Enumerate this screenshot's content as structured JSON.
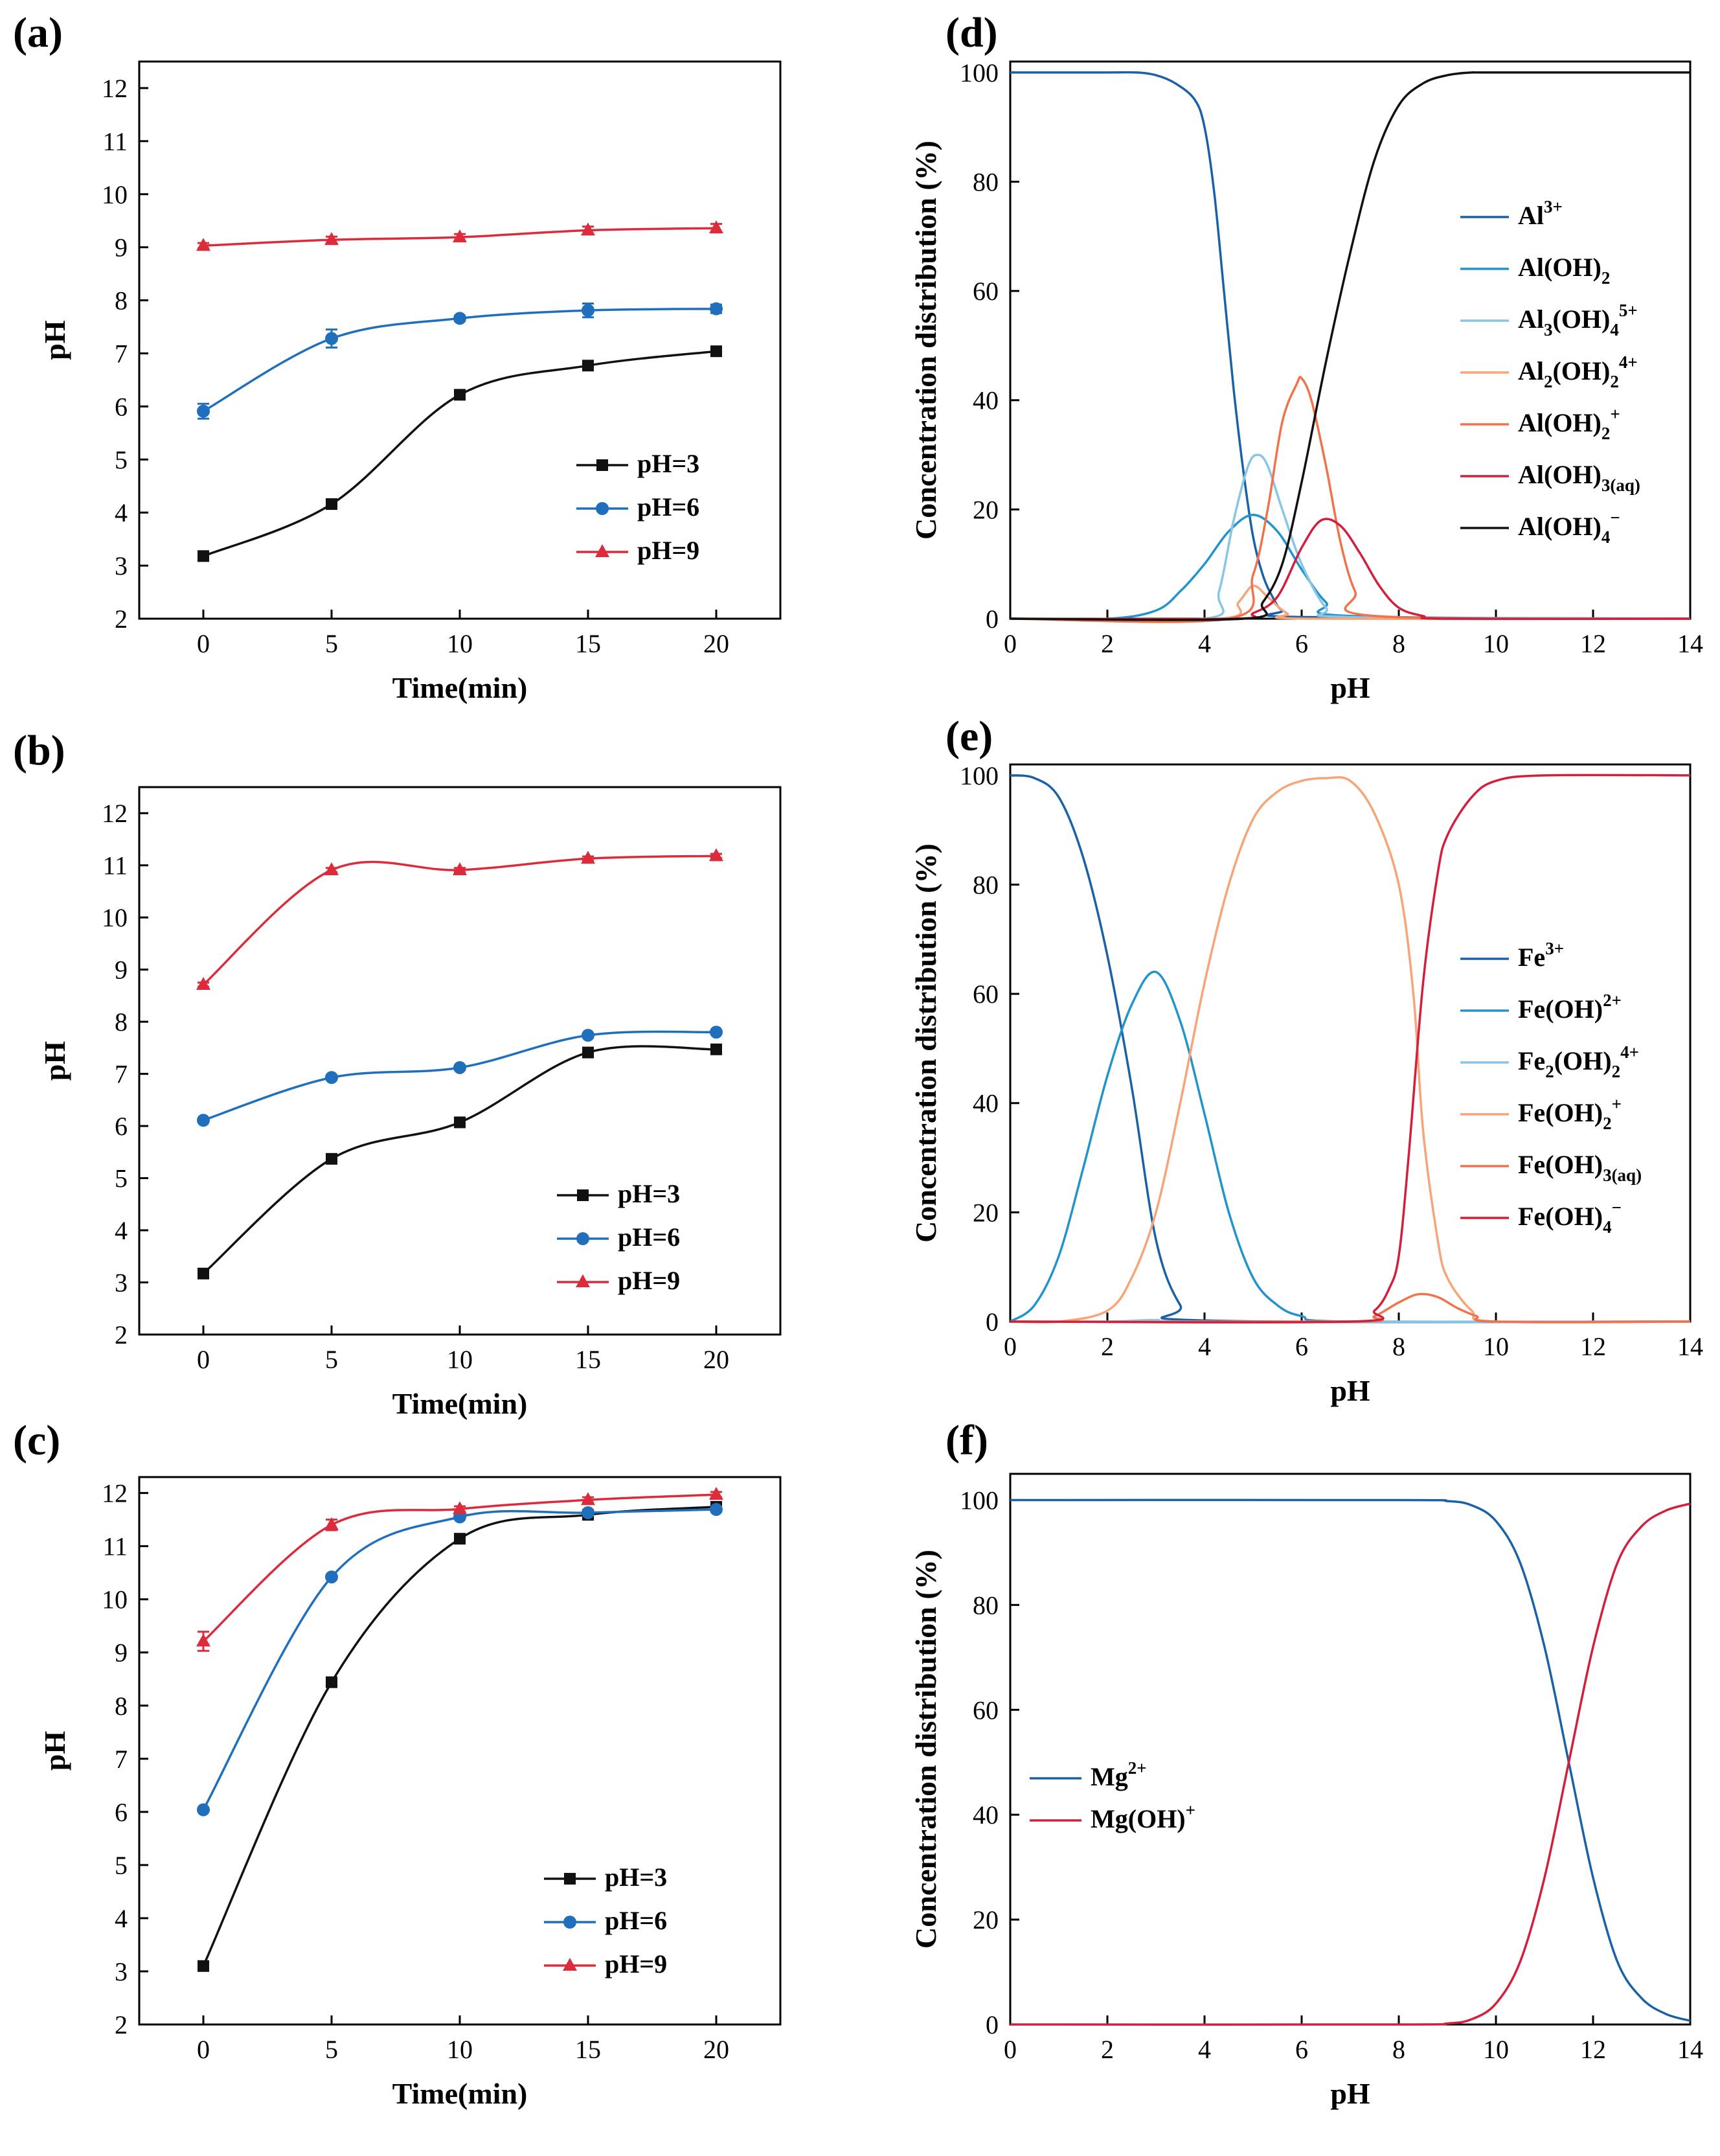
{
  "figure": {
    "panels": [
      "(a)",
      "(b)",
      "(c)",
      "(d)",
      "(e)",
      "(f)"
    ]
  },
  "chart_data": [
    {
      "id": "a",
      "panel_label": "(a)",
      "type": "line",
      "xlabel": "Time(min)",
      "ylabel": "pH",
      "xlim": [
        -2.5,
        22.5
      ],
      "ylim": [
        2,
        12.5
      ],
      "xticks": [
        0,
        5,
        10,
        15,
        20
      ],
      "yticks": [
        2,
        3,
        4,
        5,
        6,
        7,
        8,
        9,
        10,
        11,
        12
      ],
      "legend_position": "lower-right",
      "series": [
        {
          "name": "pH=3",
          "color": "#111111",
          "marker": "square",
          "x": [
            0,
            5,
            10,
            15,
            20
          ],
          "y": [
            3.18,
            4.16,
            6.22,
            6.77,
            7.04
          ],
          "err": [
            0.05,
            0.05,
            0.05,
            0.05,
            0.05
          ]
        },
        {
          "name": "pH=6",
          "color": "#1f6fbd",
          "marker": "circle",
          "x": [
            0,
            5,
            10,
            15,
            20
          ],
          "y": [
            5.91,
            7.28,
            7.66,
            7.81,
            7.84
          ],
          "err": [
            0.14,
            0.17,
            0.05,
            0.13,
            0.08
          ]
        },
        {
          "name": "pH=9",
          "color": "#dc2c3c",
          "marker": "triangle",
          "x": [
            0,
            5,
            10,
            15,
            20
          ],
          "y": [
            9.03,
            9.14,
            9.19,
            9.32,
            9.36
          ],
          "err": [
            0.05,
            0.06,
            0.06,
            0.07,
            0.08
          ]
        }
      ]
    },
    {
      "id": "b",
      "panel_label": "(b)",
      "type": "line",
      "xlabel": "Time(min)",
      "ylabel": "pH",
      "xlim": [
        -2.5,
        22.5
      ],
      "ylim": [
        2,
        12.5
      ],
      "xticks": [
        0,
        5,
        10,
        15,
        20
      ],
      "yticks": [
        2,
        3,
        4,
        5,
        6,
        7,
        8,
        9,
        10,
        11,
        12
      ],
      "legend_position": "lower-right",
      "series": [
        {
          "name": "pH=3",
          "color": "#111111",
          "marker": "square",
          "x": [
            0,
            5,
            10,
            15,
            20
          ],
          "y": [
            3.17,
            5.37,
            6.07,
            7.41,
            7.47
          ],
          "err": [
            0.04,
            0.04,
            0.04,
            0.04,
            0.04
          ]
        },
        {
          "name": "pH=6",
          "color": "#1f6fbd",
          "marker": "circle",
          "x": [
            0,
            5,
            10,
            15,
            20
          ],
          "y": [
            6.11,
            6.93,
            7.12,
            7.74,
            7.8
          ],
          "err": [
            0.04,
            0.04,
            0.04,
            0.04,
            0.04
          ]
        },
        {
          "name": "pH=9",
          "color": "#dc2c3c",
          "marker": "triangle",
          "x": [
            0,
            5,
            10,
            15,
            20
          ],
          "y": [
            8.71,
            10.91,
            10.91,
            11.13,
            11.18
          ],
          "err": [
            0.04,
            0.04,
            0.04,
            0.04,
            0.04
          ]
        }
      ]
    },
    {
      "id": "c",
      "panel_label": "(c)",
      "type": "line",
      "xlabel": "Time(min)",
      "ylabel": "pH",
      "xlim": [
        -2.5,
        22.5
      ],
      "ylim": [
        2,
        12.3
      ],
      "xticks": [
        0,
        5,
        10,
        15,
        20
      ],
      "yticks": [
        2,
        3,
        4,
        5,
        6,
        7,
        8,
        9,
        10,
        11,
        12
      ],
      "legend_position": "lower-right",
      "series": [
        {
          "name": "pH=3",
          "color": "#111111",
          "marker": "square",
          "x": [
            0,
            5,
            10,
            15,
            20
          ],
          "y": [
            3.1,
            8.44,
            11.14,
            11.59,
            11.74
          ],
          "err": [
            0.04,
            0.04,
            0.04,
            0.04,
            0.04
          ]
        },
        {
          "name": "pH=6",
          "color": "#1f6fbd",
          "marker": "circle",
          "x": [
            0,
            5,
            10,
            15,
            20
          ],
          "y": [
            6.04,
            10.42,
            11.55,
            11.63,
            11.69
          ],
          "err": [
            0.04,
            0.04,
            0.04,
            0.04,
            0.04
          ]
        },
        {
          "name": "pH=9",
          "color": "#dc2c3c",
          "marker": "triangle",
          "x": [
            0,
            5,
            10,
            15,
            20
          ],
          "y": [
            9.21,
            11.4,
            11.7,
            11.87,
            11.97
          ],
          "err": [
            0.18,
            0.1,
            0.05,
            0.05,
            0.05
          ]
        }
      ]
    },
    {
      "id": "d",
      "panel_label": "(d)",
      "type": "line",
      "xlabel": "pH",
      "ylabel": "Concentration distribution (%)",
      "xlim": [
        0,
        14
      ],
      "ylim": [
        0,
        102
      ],
      "xticks": [
        0,
        2,
        4,
        6,
        8,
        10,
        12,
        14
      ],
      "yticks": [
        0,
        20,
        40,
        60,
        80,
        100
      ],
      "legend_position": "right",
      "series": [
        {
          "name": "Al3+",
          "label_parts": [
            [
              "Al",
              ""
            ],
            [
              "3+",
              "sup"
            ]
          ],
          "color": "#1a62a8",
          "x": [
            0,
            2,
            2.6,
            3,
            3.4,
            3.8,
            4,
            4.2,
            4.4,
            4.6,
            4.8,
            5,
            5.2,
            5.4,
            5.6,
            6,
            14
          ],
          "y": [
            100,
            100,
            100,
            99.5,
            98,
            95,
            90,
            78,
            60,
            42,
            27,
            15,
            8,
            4,
            1.5,
            0.3,
            0
          ]
        },
        {
          "name": "Al(OH)2",
          "label_parts": [
            [
              "Al(OH)",
              ""
            ],
            [
              "2",
              "sub"
            ]
          ],
          "color": "#2294cc",
          "x": [
            0,
            2,
            3,
            3.5,
            4,
            4.5,
            5,
            5.5,
            6,
            6.5,
            7,
            14
          ],
          "y": [
            0,
            0,
            1.5,
            5,
            10,
            16,
            19,
            16,
            9,
            3,
            0.5,
            0
          ]
        },
        {
          "name": "Al3(OH)45+",
          "label_parts": [
            [
              "Al",
              ""
            ],
            [
              "3",
              "sub"
            ],
            [
              "(OH)",
              ""
            ],
            [
              "4",
              "sub"
            ],
            [
              "5+",
              "sup"
            ]
          ],
          "color": "#87c6e6",
          "x": [
            0,
            4,
            4.3,
            4.6,
            4.9,
            5.1,
            5.3,
            5.6,
            6,
            6.5,
            7,
            14
          ],
          "y": [
            0,
            0,
            5,
            18,
            28,
            30,
            28,
            20,
            10,
            2,
            0.3,
            0
          ]
        },
        {
          "name": "Al2(OH)24+",
          "label_parts": [
            [
              "Al",
              ""
            ],
            [
              "2",
              "sub"
            ],
            [
              "(OH)",
              ""
            ],
            [
              "2",
              "sub"
            ],
            [
              "4+",
              "sup"
            ]
          ],
          "color": "#f7a478",
          "x": [
            0,
            4.3,
            4.7,
            5,
            5.3,
            5.7,
            6.2,
            14
          ],
          "y": [
            0,
            0,
            3,
            6,
            4,
            1,
            0,
            0
          ]
        },
        {
          "name": "Al(OH)2+",
          "label_parts": [
            [
              "Al(OH)",
              ""
            ],
            [
              "2",
              "sub"
            ],
            [
              "+",
              "sup"
            ]
          ],
          "color": "#f2724c",
          "x": [
            0,
            4.5,
            5,
            5.3,
            5.6,
            5.9,
            6,
            6.2,
            6.5,
            6.8,
            7.1,
            7.5,
            14
          ],
          "y": [
            0,
            0,
            8,
            20,
            36,
            43,
            44,
            40,
            28,
            14,
            5,
            0.5,
            0
          ]
        },
        {
          "name": "Al(OH)3(aq)",
          "label_parts": [
            [
              "Al(OH)",
              ""
            ],
            [
              "3(aq)",
              "sub"
            ]
          ],
          "color": "#d21f3c",
          "x": [
            0,
            4.6,
            5,
            5.5,
            6,
            6.4,
            6.8,
            7.2,
            7.6,
            8,
            8.5,
            9,
            14
          ],
          "y": [
            0,
            0,
            1,
            4,
            13,
            18,
            17,
            12,
            6,
            2,
            0.5,
            0,
            0
          ]
        },
        {
          "name": "Al(OH)4-",
          "label_parts": [
            [
              "Al(OH)",
              ""
            ],
            [
              "4",
              "sub"
            ],
            [
              "−",
              "sup"
            ]
          ],
          "color": "#111111",
          "x": [
            0,
            4.8,
            5.2,
            5.6,
            6,
            6.5,
            7,
            7.5,
            8,
            8.5,
            9,
            9.5,
            10,
            14
          ],
          "y": [
            0,
            0,
            3,
            10,
            25,
            47,
            67,
            84,
            94,
            98,
            99.5,
            100,
            100,
            100
          ]
        }
      ]
    },
    {
      "id": "e",
      "panel_label": "(e)",
      "type": "line",
      "xlabel": "pH",
      "ylabel": "Concentration distribution (%)",
      "xlim": [
        0,
        14
      ],
      "ylim": [
        0,
        102
      ],
      "xticks": [
        0,
        2,
        4,
        6,
        8,
        10,
        12,
        14
      ],
      "yticks": [
        0,
        20,
        40,
        60,
        80,
        100
      ],
      "legend_position": "right",
      "series": [
        {
          "name": "Fe3+",
          "label_parts": [
            [
              "Fe",
              ""
            ],
            [
              "3+",
              "sup"
            ]
          ],
          "color": "#1a62a8",
          "x": [
            0,
            0.5,
            1,
            1.5,
            2,
            2.5,
            3,
            3.5,
            4,
            14
          ],
          "y": [
            100,
            99.5,
            96,
            85,
            67,
            43,
            15,
            3,
            0.2,
            0
          ]
        },
        {
          "name": "Fe(OH)2+",
          "label_parts": [
            [
              "Fe(OH)",
              ""
            ],
            [
              "2+",
              "sup"
            ]
          ],
          "color": "#2294cc",
          "x": [
            0,
            0.5,
            1,
            1.5,
            2,
            2.5,
            3,
            3.5,
            4,
            4.5,
            5,
            5.5,
            6,
            7,
            14
          ],
          "y": [
            0,
            3,
            12,
            28,
            45,
            58,
            64,
            55,
            38,
            20,
            8,
            3,
            1,
            0,
            0
          ]
        },
        {
          "name": "Fe2(OH)24+",
          "label_parts": [
            [
              "Fe",
              ""
            ],
            [
              "2",
              "sub"
            ],
            [
              "(OH)",
              ""
            ],
            [
              "2",
              "sub"
            ],
            [
              "4+",
              "sup"
            ]
          ],
          "color": "#87c6e6",
          "x": [
            0,
            2,
            3,
            4,
            14
          ],
          "y": [
            0,
            0,
            0.3,
            0,
            0
          ]
        },
        {
          "name": "Fe(OH)2+",
          "label_parts": [
            [
              "Fe(OH)",
              ""
            ],
            [
              "2",
              "sub"
            ],
            [
              "+",
              "sup"
            ]
          ],
          "color": "#f7a478",
          "x": [
            0,
            1,
            2,
            2.5,
            3,
            3.5,
            4,
            4.5,
            5,
            5.5,
            6,
            6.5,
            7,
            7.5,
            8,
            8.3,
            8.5,
            8.8,
            9,
            9.5,
            10,
            14
          ],
          "y": [
            0,
            0,
            2,
            8,
            20,
            40,
            62,
            80,
            92,
            97,
            99,
            99.5,
            99,
            93,
            80,
            60,
            35,
            15,
            8,
            2,
            0,
            0
          ]
        },
        {
          "name": "Fe(OH)3(aq)",
          "label_parts": [
            [
              "Fe(OH)",
              ""
            ],
            [
              "3(aq)",
              "sub"
            ]
          ],
          "color": "#f2724c",
          "x": [
            0,
            7,
            7.5,
            8,
            8.4,
            8.8,
            9.2,
            9.6,
            10,
            14
          ],
          "y": [
            0,
            0,
            1,
            3.5,
            5,
            4.5,
            2.5,
            1,
            0,
            0
          ]
        },
        {
          "name": "Fe(OH)4-",
          "label_parts": [
            [
              "Fe(OH)",
              ""
            ],
            [
              "4",
              "sub"
            ],
            [
              "−",
              "sup"
            ]
          ],
          "color": "#d21f3c",
          "x": [
            0,
            7,
            7.5,
            7.8,
            8,
            8.2,
            8.5,
            8.8,
            9,
            9.5,
            10,
            11,
            14
          ],
          "y": [
            0,
            0,
            2,
            6,
            12,
            30,
            62,
            82,
            89,
            96,
            99,
            100,
            100
          ]
        }
      ]
    },
    {
      "id": "f",
      "panel_label": "(f)",
      "type": "line",
      "xlabel": "pH",
      "ylabel": "Concentration distribution (%)",
      "xlim": [
        0,
        14
      ],
      "ylim": [
        0,
        105
      ],
      "xticks": [
        0,
        2,
        4,
        6,
        8,
        10,
        12,
        14
      ],
      "yticks": [
        0,
        20,
        40,
        60,
        80,
        100
      ],
      "legend_position": "left",
      "series": [
        {
          "name": "Mg2+",
          "label_parts": [
            [
              "Mg",
              ""
            ],
            [
              "2+",
              "sup"
            ]
          ],
          "color": "#1a62a8",
          "x": [
            0,
            8,
            9,
            9.5,
            10,
            10.5,
            11,
            11.5,
            12,
            12.5,
            13,
            13.5,
            14
          ],
          "y": [
            100,
            100,
            99.8,
            99,
            96,
            88,
            72,
            50,
            28,
            12,
            5,
            2,
            0.7
          ]
        },
        {
          "name": "Mg(OH)+",
          "label_parts": [
            [
              "Mg(OH)",
              ""
            ],
            [
              "+",
              "sup"
            ]
          ],
          "color": "#d21f3c",
          "x": [
            0,
            8,
            9,
            9.5,
            10,
            10.5,
            11,
            11.5,
            12,
            12.5,
            13,
            13.5,
            14
          ],
          "y": [
            0,
            0,
            0.2,
            1,
            4,
            12,
            28,
            50,
            72,
            88,
            95,
            98,
            99.3
          ]
        }
      ]
    }
  ]
}
